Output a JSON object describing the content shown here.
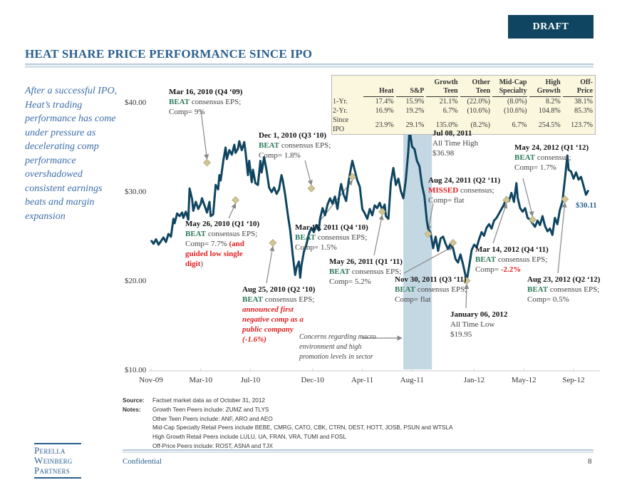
{
  "header": {
    "draft_label": "DRAFT",
    "title": "HEAT SHARE PRICE PERFORMANCE SINCE IPO"
  },
  "sidebar_text": "After a successful IPO, Heat’s trading performance has come under pressure as decelerating comp performance overshadowed consistent earnings beats and margin expansion",
  "performance_table": {
    "columns": [
      "",
      "Heat",
      "S&P",
      "Growth Teen",
      "Other Teen",
      "Mid-Cap Specialty",
      "High Growth",
      "Off-Price"
    ],
    "rows": [
      {
        "label": "1-Yr.",
        "values": [
          "17.4%",
          "15.9%",
          "21.1%",
          "(22.0%)",
          "(8.0%)",
          "8.2%",
          "38.1%"
        ]
      },
      {
        "label": "2-Yr.",
        "values": [
          "16.9%",
          "19.2%",
          "6.7%",
          "(10.6%)",
          "(10.6%)",
          "104.8%",
          "85.3%"
        ]
      },
      {
        "label": "Since IPO",
        "values": [
          "23.9%",
          "29.1%",
          "135.0%",
          "(8.2%)",
          "6.7%",
          "254.5%",
          "123.7%"
        ]
      }
    ]
  },
  "chart_data": {
    "type": "line",
    "title": "Heat Share Price Performance Since IPO",
    "xlabel": "",
    "ylabel": "",
    "ylim": [
      10,
      40
    ],
    "yticks": [
      "$40.00",
      "$30.00",
      "$20.00",
      "$10.00"
    ],
    "ytick_values": [
      40,
      30,
      20,
      10
    ],
    "xticks": [
      "Nov-09",
      "Mar-10",
      "Jul-10",
      "Dec-10",
      "Apr-11",
      "Aug-11",
      "Jan-12",
      "May-12",
      "Sep-12"
    ],
    "xtick_months": [
      0,
      4,
      8,
      13,
      17,
      21,
      26,
      30,
      34
    ],
    "x_range_months": [
      -0.3,
      35.3
    ],
    "grid": false,
    "series": [
      {
        "name": "HEAT share price",
        "color": "#0f4560",
        "points": [
          [
            0.0,
            24.5
          ],
          [
            0.2,
            24.1
          ],
          [
            0.4,
            24.6
          ],
          [
            0.6,
            24.0
          ],
          [
            0.8,
            24.4
          ],
          [
            1.0,
            24.8
          ],
          [
            1.2,
            24.3
          ],
          [
            1.4,
            25.2
          ],
          [
            1.6,
            24.9
          ],
          [
            1.8,
            26.9
          ],
          [
            1.9,
            26.4
          ],
          [
            2.1,
            27.5
          ],
          [
            2.3,
            27.2
          ],
          [
            2.5,
            27.6
          ],
          [
            2.6,
            27.0
          ],
          [
            2.8,
            27.7
          ],
          [
            3.0,
            26.8
          ],
          [
            3.1,
            30.3
          ],
          [
            3.3,
            29.1
          ],
          [
            3.4,
            27.8
          ],
          [
            3.6,
            28.8
          ],
          [
            3.8,
            28.0
          ],
          [
            4.0,
            28.6
          ],
          [
            4.1,
            29.2
          ],
          [
            4.3,
            28.4
          ],
          [
            4.5,
            27.6
          ],
          [
            4.7,
            28.8
          ],
          [
            4.8,
            27.2
          ],
          [
            5.0,
            27.4
          ],
          [
            5.2,
            30.7
          ],
          [
            5.4,
            30.2
          ],
          [
            5.5,
            31.8
          ],
          [
            5.6,
            31.2
          ],
          [
            5.8,
            33.3
          ],
          [
            6.0,
            34.9
          ],
          [
            6.1,
            33.6
          ],
          [
            6.3,
            34.6
          ],
          [
            6.5,
            34.1
          ],
          [
            6.7,
            35.2
          ],
          [
            6.8,
            34.3
          ],
          [
            7.0,
            34.8
          ],
          [
            7.1,
            35.6
          ],
          [
            7.3,
            34.6
          ],
          [
            7.5,
            35.5
          ],
          [
            7.6,
            34.4
          ],
          [
            7.8,
            31.8
          ],
          [
            7.9,
            33.4
          ],
          [
            8.1,
            31.0
          ],
          [
            8.2,
            32.4
          ],
          [
            8.4,
            30.9
          ],
          [
            8.6,
            30.7
          ],
          [
            8.8,
            33.4
          ],
          [
            8.9,
            32.1
          ],
          [
            9.1,
            33.8
          ],
          [
            9.3,
            32.3
          ],
          [
            9.5,
            30.4
          ],
          [
            9.7,
            29.9
          ],
          [
            9.9,
            30.4
          ],
          [
            10.1,
            29.7
          ],
          [
            10.3,
            30.2
          ],
          [
            10.5,
            31.8
          ],
          [
            10.6,
            31.2
          ],
          [
            10.8,
            29.5
          ],
          [
            11.0,
            27.4
          ],
          [
            11.2,
            25.6
          ],
          [
            11.4,
            22.9
          ],
          [
            11.6,
            20.6
          ],
          [
            11.7,
            21.4
          ],
          [
            11.9,
            22.1
          ],
          [
            12.0,
            20.3
          ],
          [
            12.1,
            21.6
          ],
          [
            12.3,
            23.2
          ],
          [
            12.5,
            24.0
          ],
          [
            12.7,
            25.2
          ],
          [
            12.9,
            25.9
          ],
          [
            13.1,
            25.4
          ],
          [
            13.3,
            26.2
          ],
          [
            13.5,
            25.6
          ],
          [
            13.6,
            26.9
          ],
          [
            13.8,
            28.1
          ],
          [
            14.0,
            27.3
          ],
          [
            14.2,
            28.5
          ],
          [
            14.4,
            29.2
          ],
          [
            14.6,
            28.6
          ],
          [
            14.8,
            29.4
          ],
          [
            15.0,
            28.0
          ],
          [
            15.2,
            30.1
          ],
          [
            15.3,
            30.8
          ],
          [
            15.5,
            29.6
          ],
          [
            15.7,
            28.9
          ],
          [
            15.9,
            31.1
          ],
          [
            16.1,
            32.7
          ],
          [
            16.2,
            33.4
          ],
          [
            16.4,
            32.3
          ],
          [
            16.6,
            31.2
          ],
          [
            16.8,
            30.5
          ],
          [
            17.0,
            28.0
          ],
          [
            17.2,
            27.5
          ],
          [
            17.4,
            26.9
          ],
          [
            17.6,
            28.0
          ],
          [
            17.8,
            27.3
          ],
          [
            18.0,
            28.4
          ],
          [
            18.2,
            28.1
          ],
          [
            18.4,
            28.7
          ],
          [
            18.6,
            27.9
          ],
          [
            18.8,
            28.5
          ],
          [
            18.9,
            27.2
          ],
          [
            19.1,
            26.9
          ],
          [
            19.3,
            31.0
          ],
          [
            19.5,
            32.6
          ],
          [
            19.7,
            30.7
          ],
          [
            19.9,
            31.4
          ],
          [
            20.1,
            30.0
          ],
          [
            20.3,
            29.2
          ],
          [
            20.5,
            31.2
          ],
          [
            20.7,
            34.4
          ],
          [
            20.8,
            36.98
          ],
          [
            21.0,
            35.0
          ],
          [
            21.2,
            34.7
          ],
          [
            21.4,
            33.4
          ],
          [
            21.6,
            32.8
          ],
          [
            21.8,
            30.7
          ],
          [
            22.0,
            29.4
          ],
          [
            22.2,
            26.6
          ],
          [
            22.3,
            25.8
          ],
          [
            22.5,
            25.3
          ],
          [
            22.7,
            23.6
          ],
          [
            22.9,
            24.9
          ],
          [
            23.1,
            23.3
          ],
          [
            23.3,
            24.7
          ],
          [
            23.5,
            24.9
          ],
          [
            23.7,
            24.1
          ],
          [
            23.9,
            23.5
          ],
          [
            24.1,
            24.1
          ],
          [
            24.3,
            23.6
          ],
          [
            24.5,
            22.4
          ],
          [
            24.7,
            22.0
          ],
          [
            24.9,
            22.9
          ],
          [
            25.1,
            21.8
          ],
          [
            25.2,
            21.2
          ],
          [
            25.4,
            19.95
          ],
          [
            25.6,
            21.6
          ],
          [
            25.8,
            23.4
          ],
          [
            26.0,
            24.0
          ],
          [
            26.2,
            23.7
          ],
          [
            26.4,
            24.6
          ],
          [
            26.6,
            25.4
          ],
          [
            26.8,
            25.0
          ],
          [
            27.0,
            25.9
          ],
          [
            27.2,
            26.3
          ],
          [
            27.4,
            25.8
          ],
          [
            27.6,
            26.7
          ],
          [
            27.8,
            27.0
          ],
          [
            28.0,
            27.5
          ],
          [
            28.2,
            28.0
          ],
          [
            28.4,
            28.5
          ],
          [
            28.6,
            29.3
          ],
          [
            28.8,
            28.9
          ],
          [
            29.0,
            29.8
          ],
          [
            29.2,
            28.8
          ],
          [
            29.4,
            30.9
          ],
          [
            29.5,
            29.3
          ],
          [
            29.7,
            28.1
          ],
          [
            29.9,
            27.7
          ],
          [
            30.1,
            28.1
          ],
          [
            30.3,
            27.0
          ],
          [
            30.5,
            26.8
          ],
          [
            30.7,
            26.4
          ],
          [
            30.9,
            26.0
          ],
          [
            31.1,
            26.7
          ],
          [
            31.3,
            26.2
          ],
          [
            31.5,
            27.2
          ],
          [
            31.7,
            26.1
          ],
          [
            31.9,
            25.5
          ],
          [
            32.1,
            25.8
          ],
          [
            32.3,
            25.1
          ],
          [
            32.5,
            27.0
          ],
          [
            32.7,
            26.3
          ],
          [
            32.9,
            27.9
          ],
          [
            33.1,
            28.8
          ],
          [
            33.3,
            31.3
          ],
          [
            33.5,
            34.0
          ],
          [
            33.6,
            32.4
          ],
          [
            33.8,
            32.2
          ],
          [
            34.0,
            31.4
          ],
          [
            34.2,
            32.1
          ],
          [
            34.4,
            31.3
          ],
          [
            34.6,
            31.6
          ],
          [
            34.8,
            30.6
          ],
          [
            35.0,
            29.6
          ],
          [
            35.2,
            30.11
          ]
        ]
      }
    ],
    "events": [
      {
        "x": 4.5,
        "y": 33.2,
        "date": "Mar 16, 2010 (Q4 ‘09)",
        "result": "BEAT",
        "detail": "consensus EPS;",
        "comp": "Comp= 9%"
      },
      {
        "x": 6.8,
        "y": 29.0,
        "date": "May 26, 2010 (Q1 ‘10)",
        "result": "BEAT",
        "detail": "consensus EPS;",
        "comp": "Comp= 7.7%",
        "note": "(and guided low single digit)"
      },
      {
        "x": 9.8,
        "y": 24.2,
        "date": "Aug 25, 2010 (Q2 ‘10)",
        "result": "BEAT",
        "detail": "consensus EPS;",
        "note": "announced first negative comp as a public company (-1.6%)"
      },
      {
        "x": 12.9,
        "y": 30.3,
        "date": "Dec 1, 2010 (Q3 ‘10)",
        "result": "BEAT",
        "detail": "consensus EPS;",
        "comp": "Comp= 1.8%"
      },
      {
        "x": 16.2,
        "y": 31.6,
        "date": "Mar 15, 2011 (Q4 ‘10)",
        "result": "BEAT",
        "detail": "consensus EPS;",
        "comp": "Comp= 1.5%"
      },
      {
        "x": 18.6,
        "y": 27.7,
        "date": "May 26, 2011 (Q1 ‘11)",
        "result": "BEAT",
        "detail": "consensus EPS;",
        "comp": "Comp= 5.2%"
      },
      {
        "x": 20.8,
        "y": 36.98,
        "date": "Jul 08, 2011",
        "detail": "All Time High",
        "comp": "$36.98"
      },
      {
        "x": 22.3,
        "y": 25.2,
        "date": "Aug 24, 2011 (Q2 ‘11)",
        "result": "MISSED",
        "detail": "consensus;",
        "comp": "Comp= flat"
      },
      {
        "x": 24.3,
        "y": 24.2,
        "date": "Nov 30, 2011 (Q3 ‘11)",
        "result": "BEAT",
        "detail": "consensus EPS;",
        "comp": "Comp= flat"
      },
      {
        "x": 25.4,
        "y": 19.95,
        "date": "January 06, 2012",
        "detail": "All Time Low",
        "comp": "$19.95"
      },
      {
        "x": 28.6,
        "y": 29.0,
        "date": "Mar 14, 2012 (Q4 ‘11)",
        "result": "BEAT",
        "detail": "consensus EPS;",
        "comp": "Comp= -2.2%"
      },
      {
        "x": 30.7,
        "y": 26.8,
        "date": "May 24, 2012 (Q1 ‘12)",
        "result": "BEAT",
        "detail": "consensus;",
        "comp": "Comp= 1.7%"
      },
      {
        "x": 33.3,
        "y": 29.1,
        "date": "Aug 23, 2012 (Q2 ‘12)",
        "result": "BEAT",
        "detail": "consensus EPS;",
        "comp": "Comp= 0.5%"
      }
    ],
    "shaded_region": {
      "x_start": 20.3,
      "x_end": 22.6,
      "label": "Concerns regarding macro environment and high promotion levels in sector"
    },
    "last_price_label": "$30.11"
  },
  "annotations": {
    "mar16_2010": {
      "date": "Mar 16, 2010 (Q4 ‘09)",
      "beat": "BEAT",
      "text": " consensus EPS;",
      "comp": "Comp= 9%"
    },
    "may26_2010": {
      "date": "May 26, 2010 (Q1 ‘10)",
      "beat": "BEAT",
      "text": " consensus EPS;",
      "comp": "Comp= 7.7%  ",
      "red1": "(and",
      "red2": "guided low single",
      "red3": "digit",
      "close": ")"
    },
    "aug25_2010": {
      "date": "Aug 25, 2010 (Q2 ‘10)",
      "beat": "BEAT",
      "text": " consensus EPS;",
      "red1": "announced first",
      "red2": "negative comp as a",
      "red3": "public company",
      "red4": "(-1.6%)"
    },
    "dec1_2010": {
      "date": "Dec 1, 2010 (Q3 ‘10)",
      "beat": "BEAT",
      "text": " consensus EPS;",
      "comp": "Comp= 1.8%"
    },
    "mar15_2011": {
      "date": "Mar 15, 2011 (Q4 ‘10)",
      "beat": "BEAT",
      "text": " consensus EPS;",
      "comp": "Comp= 1.5%"
    },
    "may26_2011": {
      "date": "May 26, 2011 (Q1 ‘11)",
      "beat": "BEAT",
      "text": " consensus EPS;",
      "comp": "Comp= 5.2%"
    },
    "jul08_2011": {
      "date": "Jul 08, 2011",
      "line1": "All Time High",
      "line2": "$36.98"
    },
    "aug24_2011": {
      "date": "Aug 24, 2011 (Q2 ‘11)",
      "miss": "MISSED",
      "text": " consensus;",
      "comp": "Comp= flat"
    },
    "nov30_2011": {
      "date": "Nov 30, 2011 (Q3 ‘11)",
      "beat": "BEAT",
      "text": " consensus EPS;",
      "comp": "Comp= flat"
    },
    "jan06_2012": {
      "date": "January 06, 2012",
      "line1": "All Time Low",
      "line2": "$19.95"
    },
    "mar14_2012": {
      "date": "Mar 14, 2012 (Q4 ‘11)",
      "beat": "BEAT",
      "text": " consensus EPS;",
      "comp_prefix": "Comp= ",
      "comp_red": "-2.2%"
    },
    "may24_2012": {
      "date": "May 24, 2012 (Q1 ‘12)",
      "beat": "BEAT",
      "text": " consensus;",
      "comp": "Comp= 1.7%"
    },
    "aug23_2012": {
      "date": "Aug 23, 2012 (Q2 ‘12)",
      "beat": "BEAT",
      "text": " consensus EPS;",
      "comp": "Comp= 0.5%"
    },
    "macro_line1": "Concerns regarding macro",
    "macro_line2": "environment and high",
    "macro_line3": "promotion levels in sector"
  },
  "footnotes": {
    "source_label": "Source:",
    "source_text": "Factset market data as of October 31, 2012",
    "notes_label": "Notes:",
    "notes": [
      "Growth Teen Peers include: ZUMZ and TLYS",
      "Other Teen Peers include: ANF, ARO and AEO",
      "Mid-Cap Specialty Retail Peers include BEBE, CMRG, CATO, CBK, CTRN, DEST, HOTT, JOSB, PSUN and WTSLA",
      "High Growth Retail Peers include LULU, UA, FRAN, VRA, TUMI and FOSL",
      "Off-Price Peers include: ROST, ASNA and TJX"
    ]
  },
  "footer": {
    "logo_lines": [
      "Perella",
      "Weinberg",
      "Partners"
    ],
    "confidential": "Confidential",
    "page_number": "8"
  },
  "colors": {
    "brand_blue": "#2a5f8f",
    "draft_bg": "#0f4560",
    "line": "#0f4560",
    "beat_green": "#2e7a5a",
    "miss_red": "#e02020",
    "marker": "#cfc595",
    "shade": "#c4d8e3",
    "table_bg": "#fbf7de"
  }
}
